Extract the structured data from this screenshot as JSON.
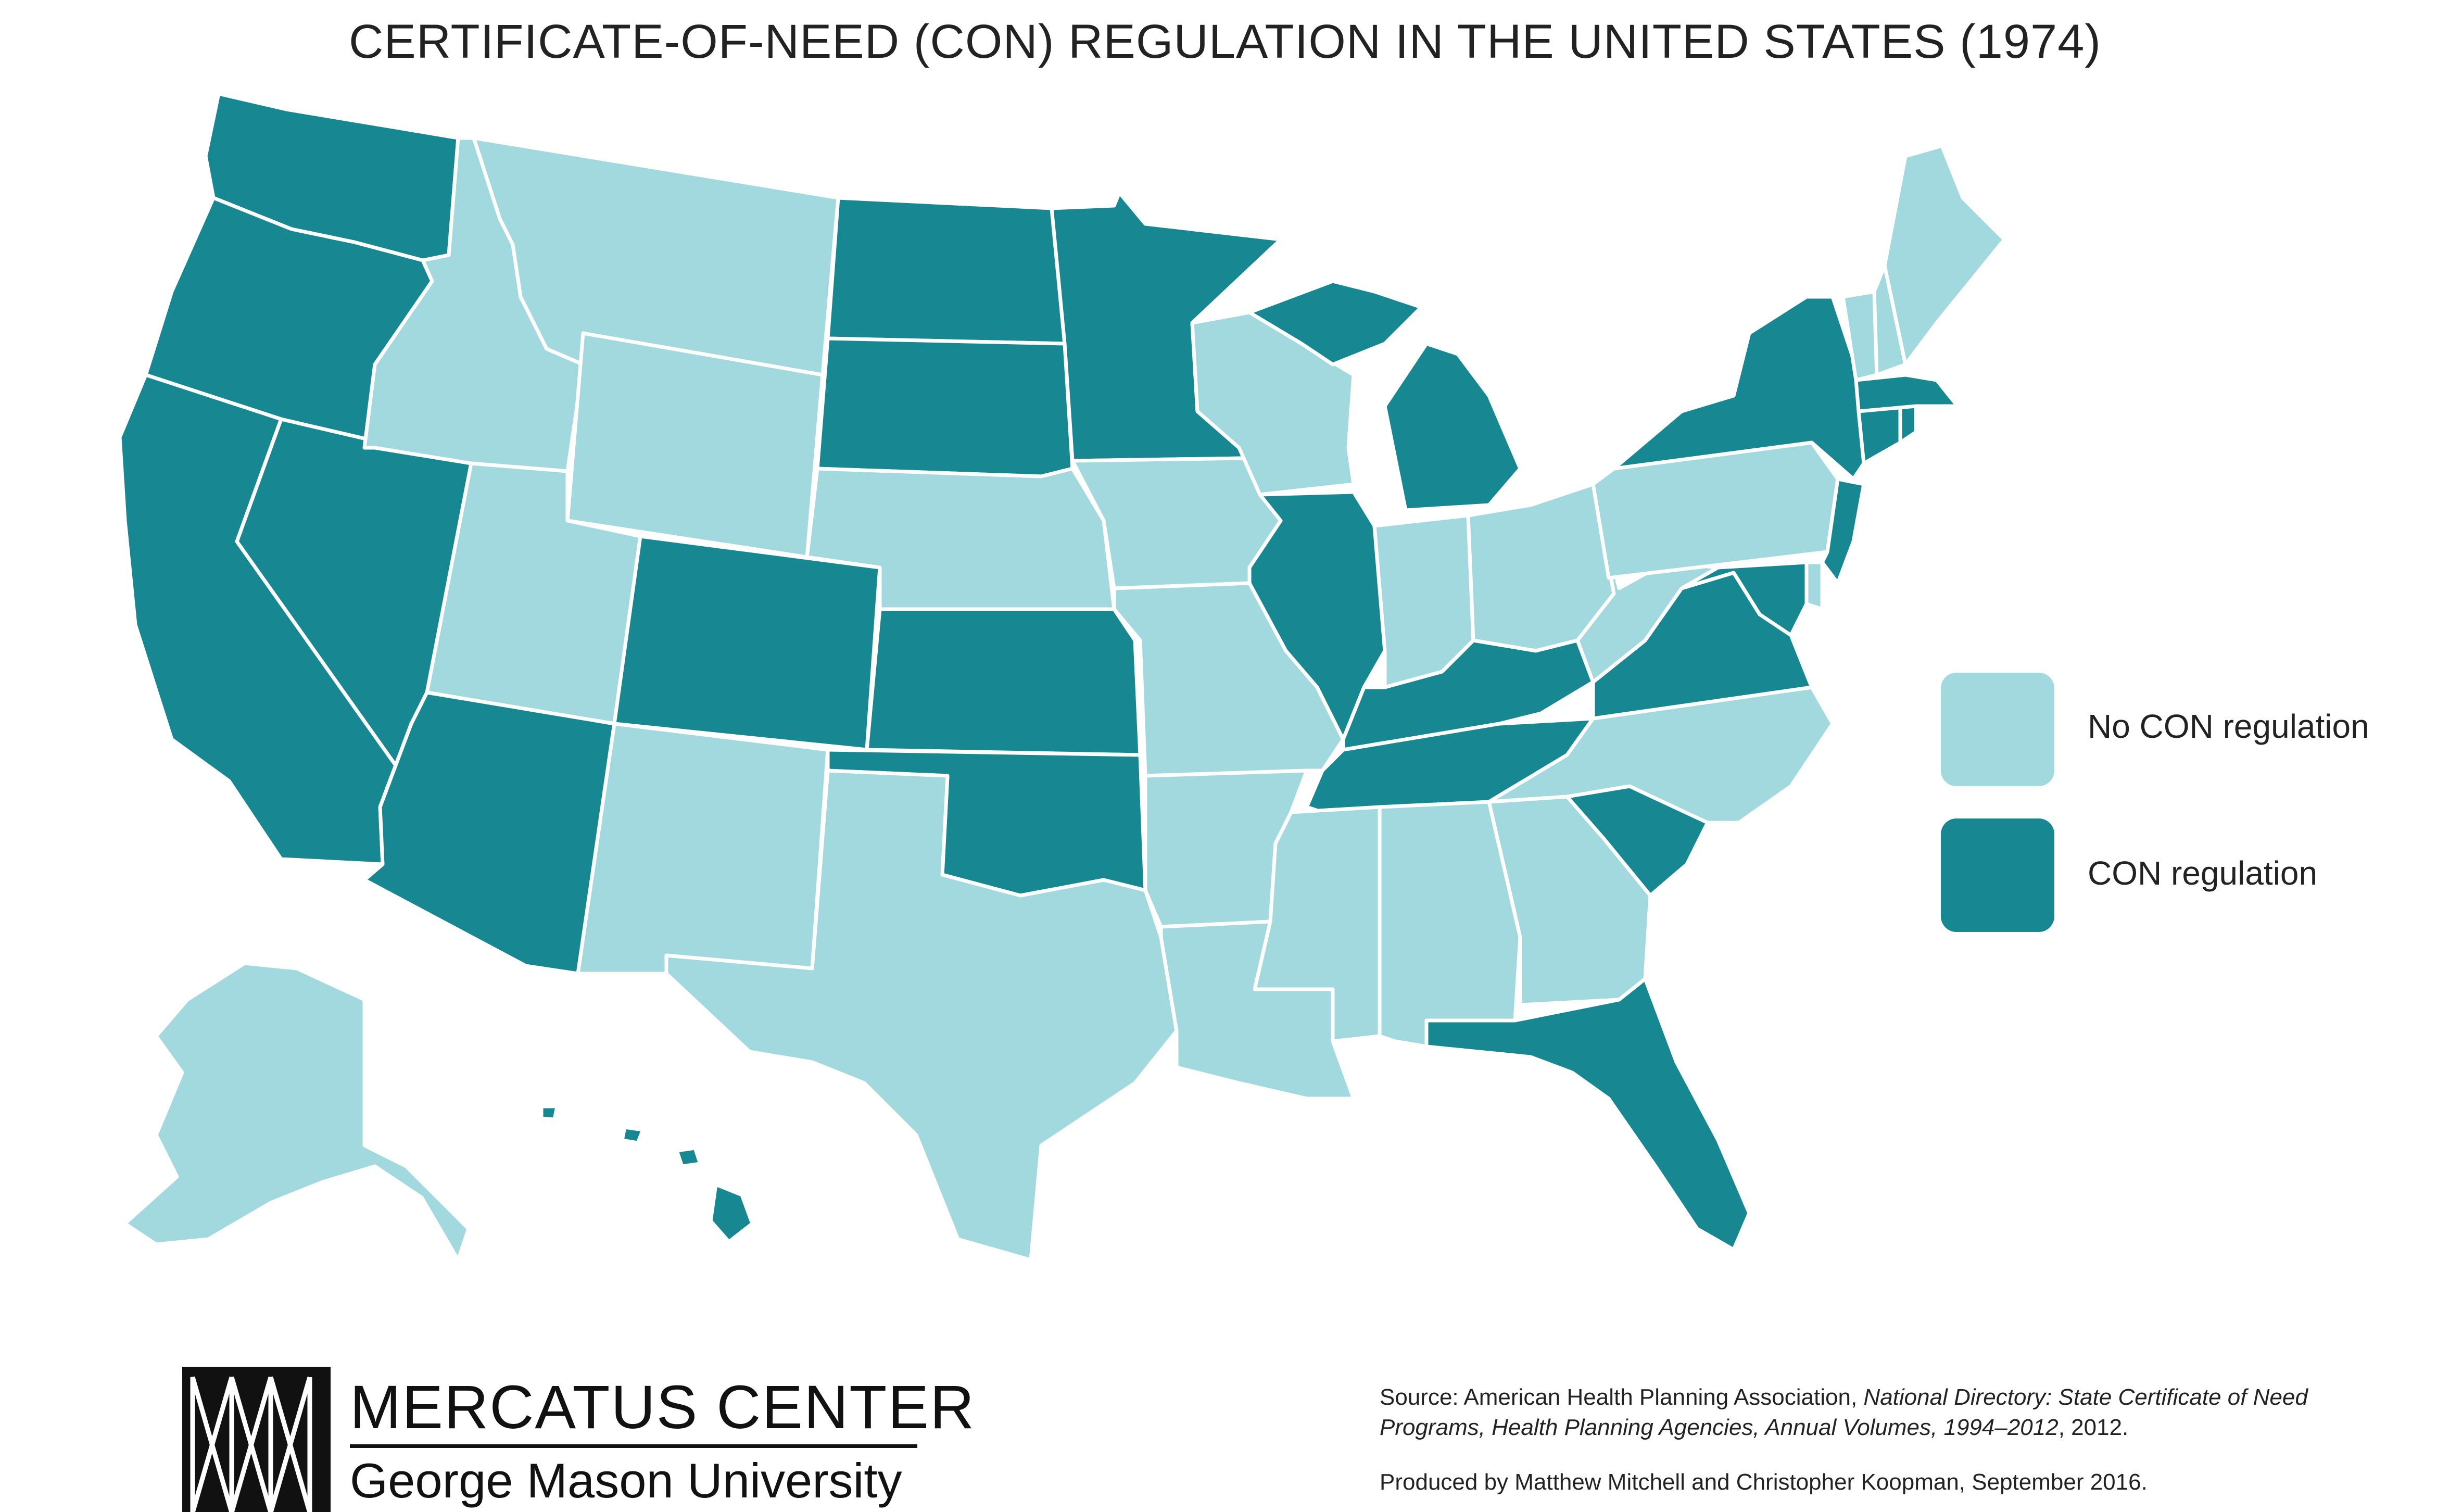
{
  "title": "CERTIFICATE-OF-NEED (CON) REGULATION IN THE UNITED STATES (1974)",
  "colors": {
    "no_con": "#a1d9df",
    "con": "#178891",
    "border": "#ffffff",
    "text": "#222222"
  },
  "legend": {
    "no_con_label": "No CON regulation",
    "con_label": "CON regulation"
  },
  "states": {
    "WA": "con",
    "OR": "con",
    "CA": "con",
    "NV": "con",
    "ID": "no_con",
    "MT": "no_con",
    "WY": "no_con",
    "UT": "no_con",
    "AZ": "con",
    "CO": "con",
    "NM": "no_con",
    "ND": "con",
    "SD": "con",
    "NE": "no_con",
    "KS": "con",
    "OK": "con",
    "TX": "no_con",
    "MN": "con",
    "IA": "no_con",
    "MO": "no_con",
    "AR": "no_con",
    "LA": "no_con",
    "WI": "no_con",
    "IL": "con",
    "MI": "con",
    "IN": "no_con",
    "OH": "no_con",
    "KY": "con",
    "TN": "con",
    "MS": "no_con",
    "AL": "no_con",
    "GA": "no_con",
    "FL": "con",
    "SC": "con",
    "NC": "no_con",
    "VA": "con",
    "WV": "no_con",
    "PA": "no_con",
    "NY": "con",
    "NJ": "con",
    "DE": "no_con",
    "MD": "con",
    "CT": "con",
    "RI": "con",
    "MA": "con",
    "VT": "no_con",
    "NH": "no_con",
    "ME": "no_con",
    "AK": "no_con",
    "HI": "con"
  },
  "logo": {
    "line1": "MERCATUS CENTER",
    "line2": "George Mason University"
  },
  "source": {
    "prefix": "Source: American Health Planning Association, ",
    "italic": "National Directory: State Certificate of Need Programs, Health Planning Agencies, Annual Volumes, 1994–2012",
    "suffix": ", 2012."
  },
  "credit": "Produced by Matthew Mitchell and Christopher Koopman, September 2016."
}
